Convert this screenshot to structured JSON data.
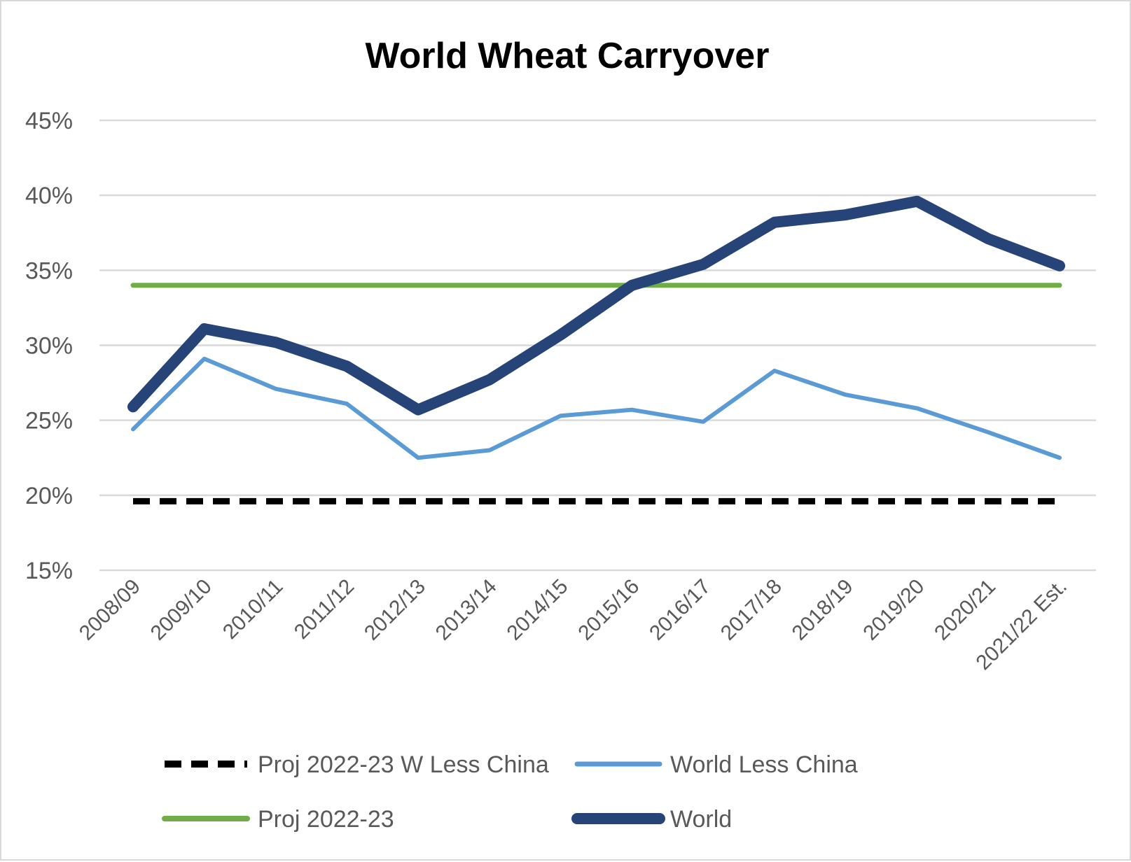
{
  "chart_data": {
    "type": "line",
    "title": "World Wheat Carryover",
    "xlabel": "",
    "ylabel": "",
    "ylim": [
      15,
      45
    ],
    "yticks": [
      "15%",
      "20%",
      "25%",
      "30%",
      "35%",
      "40%",
      "45%"
    ],
    "ytick_values": [
      15,
      20,
      25,
      30,
      35,
      40,
      45
    ],
    "grid": true,
    "legend_position": "bottom",
    "categories": [
      "2008/09",
      "2009/10",
      "2010/11",
      "2011/12",
      "2012/13",
      "2013/14",
      "2014/15",
      "2015/16",
      "2016/17",
      "2017/18",
      "2018/19",
      "2019/20",
      "2020/21",
      "2021/22 Est."
    ],
    "series": [
      {
        "name": "Proj 2022-23 W Less China",
        "color": "#000000",
        "style": "dashed",
        "values": [
          19.6,
          19.6,
          19.6,
          19.6,
          19.6,
          19.6,
          19.6,
          19.6,
          19.6,
          19.6,
          19.6,
          19.6,
          19.6,
          19.6
        ]
      },
      {
        "name": "World Less China",
        "color": "#5b9bd5",
        "style": "solid",
        "values": [
          24.4,
          29.1,
          27.1,
          26.1,
          22.5,
          23.0,
          25.3,
          25.7,
          24.9,
          28.3,
          26.7,
          25.8,
          24.2,
          22.5
        ]
      },
      {
        "name": "Proj 2022-23",
        "color": "#70ad47",
        "style": "solid",
        "values": [
          34.0,
          34.0,
          34.0,
          34.0,
          34.0,
          34.0,
          34.0,
          34.0,
          34.0,
          34.0,
          34.0,
          34.0,
          34.0,
          34.0
        ]
      },
      {
        "name": "World",
        "color": "#264478",
        "style": "thick",
        "values": [
          25.9,
          31.1,
          30.2,
          28.6,
          25.7,
          27.7,
          30.7,
          34.0,
          35.4,
          38.2,
          38.7,
          39.6,
          37.1,
          35.3
        ]
      }
    ]
  }
}
